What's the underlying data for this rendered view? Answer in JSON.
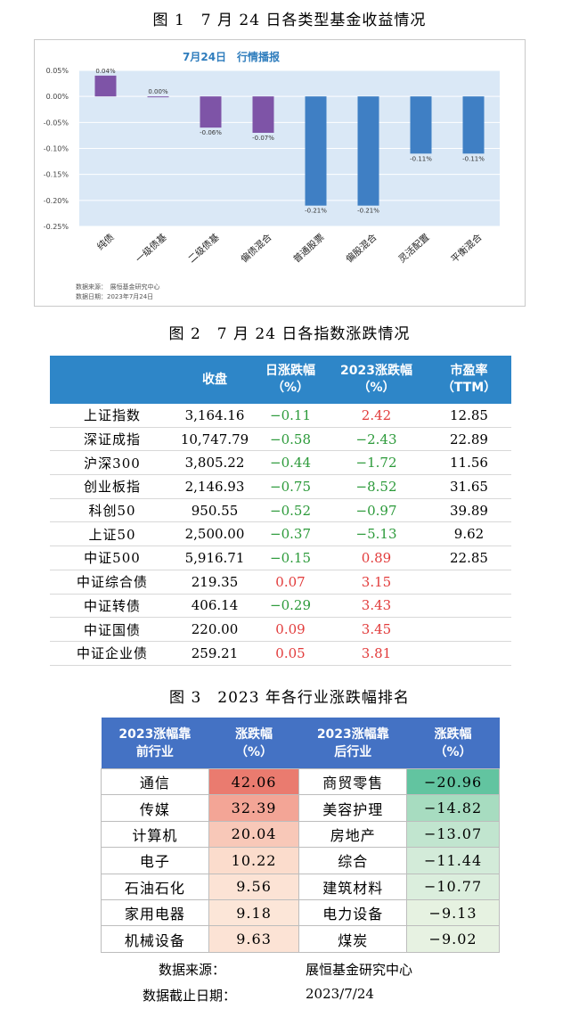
{
  "fig1": {
    "caption": "图 1　7 月 24 日各类型基金收益情况",
    "source_line": "数据来源：　展恒基金研究中心",
    "date_line": "数据日期：2023年7月24日",
    "chart_data": {
      "type": "bar",
      "title": "7月24日　行情播报",
      "categories": [
        "纯债",
        "一级债基",
        "二级债基",
        "偏债混合",
        "普通股票",
        "偏股混合",
        "灵活配置",
        "平衡混合"
      ],
      "values": [
        0.04,
        0.0,
        -0.06,
        -0.07,
        -0.21,
        -0.21,
        -0.11,
        -0.11
      ],
      "data_labels": [
        "0.04%",
        "0.00%",
        "-0.06%",
        "-0.07%",
        "-0.21%",
        "-0.21%",
        "-0.11%",
        "-0.11%"
      ],
      "colors": [
        "#7e54a7",
        "#7e54a7",
        "#7e54a7",
        "#7e54a7",
        "#3f7fc4",
        "#3f7fc4",
        "#3f7fc4",
        "#3f7fc4"
      ],
      "yticks": [
        "0.05%",
        "0.00%",
        "-0.05%",
        "-0.10%",
        "-0.15%",
        "-0.20%",
        "-0.25%"
      ],
      "ylim": [
        -0.25,
        0.05
      ],
      "plot_bg": "#dae8f6"
    }
  },
  "table2": {
    "caption": "图 2　7 月 24 日各指数涨跌情况",
    "headers": [
      "",
      "收盘",
      "日涨跌幅\n（%）",
      "2023涨跌幅\n（%）",
      "市盈率\n（TTM）"
    ],
    "rows": [
      [
        "上证指数",
        "3,164.16",
        "−0.11",
        "2.42",
        "12.85"
      ],
      [
        "深证成指",
        "10,747.79",
        "−0.58",
        "−2.43",
        "22.89"
      ],
      [
        "沪深300",
        "3,805.22",
        "−0.44",
        "−1.72",
        "11.56"
      ],
      [
        "创业板指",
        "2,146.93",
        "−0.75",
        "−8.52",
        "31.65"
      ],
      [
        "科创50",
        "950.55",
        "−0.52",
        "−0.97",
        "39.89"
      ],
      [
        "上证50",
        "2,500.00",
        "−0.37",
        "−5.13",
        "9.62"
      ],
      [
        "中证500",
        "5,916.71",
        "−0.15",
        "0.89",
        "22.85"
      ],
      [
        "中证综合债",
        "219.35",
        "0.07",
        "3.15",
        ""
      ],
      [
        "中证转债",
        "406.14",
        "−0.29",
        "3.43",
        ""
      ],
      [
        "中证国债",
        "220.00",
        "0.09",
        "3.45",
        ""
      ],
      [
        "中证企业债",
        "259.21",
        "0.05",
        "3.81",
        ""
      ]
    ]
  },
  "table3": {
    "caption": "图 3　2023 年各行业涨跌幅排名",
    "headers": [
      "2023涨幅靠\n前行业",
      "涨跌幅\n（%）",
      "2023涨幅靠\n后行业",
      "涨跌幅\n（%）"
    ],
    "rows": [
      [
        "通信",
        "42.06",
        "商贸零售",
        "−20.96"
      ],
      [
        "传媒",
        "32.39",
        "美容护理",
        "−14.82"
      ],
      [
        "计算机",
        "20.04",
        "房地产",
        "−13.07"
      ],
      [
        "电子",
        "10.22",
        "综合",
        "−11.44"
      ],
      [
        "石油石化",
        "9.56",
        "建筑材料",
        "−10.77"
      ],
      [
        "家用电器",
        "9.18",
        "电力设备",
        "−9.13"
      ],
      [
        "机械设备",
        "9.63",
        "煤炭",
        "−9.02"
      ]
    ],
    "left_colors": [
      "#ea7b6f",
      "#f3a596",
      "#f8c8b8",
      "#fbdccc",
      "#fce3d5",
      "#fce6d8",
      "#fce3d5"
    ],
    "right_colors": [
      "#62c4a0",
      "#a7dcc0",
      "#c1e5cf",
      "#d3ebd9",
      "#dbeedd",
      "#e6f2e1",
      "#e7f2e2"
    ],
    "source_label": "数据来源：",
    "source_value": "展恒基金研究中心",
    "date_label": "数据截止日期：",
    "date_value": "2023/7/24"
  }
}
